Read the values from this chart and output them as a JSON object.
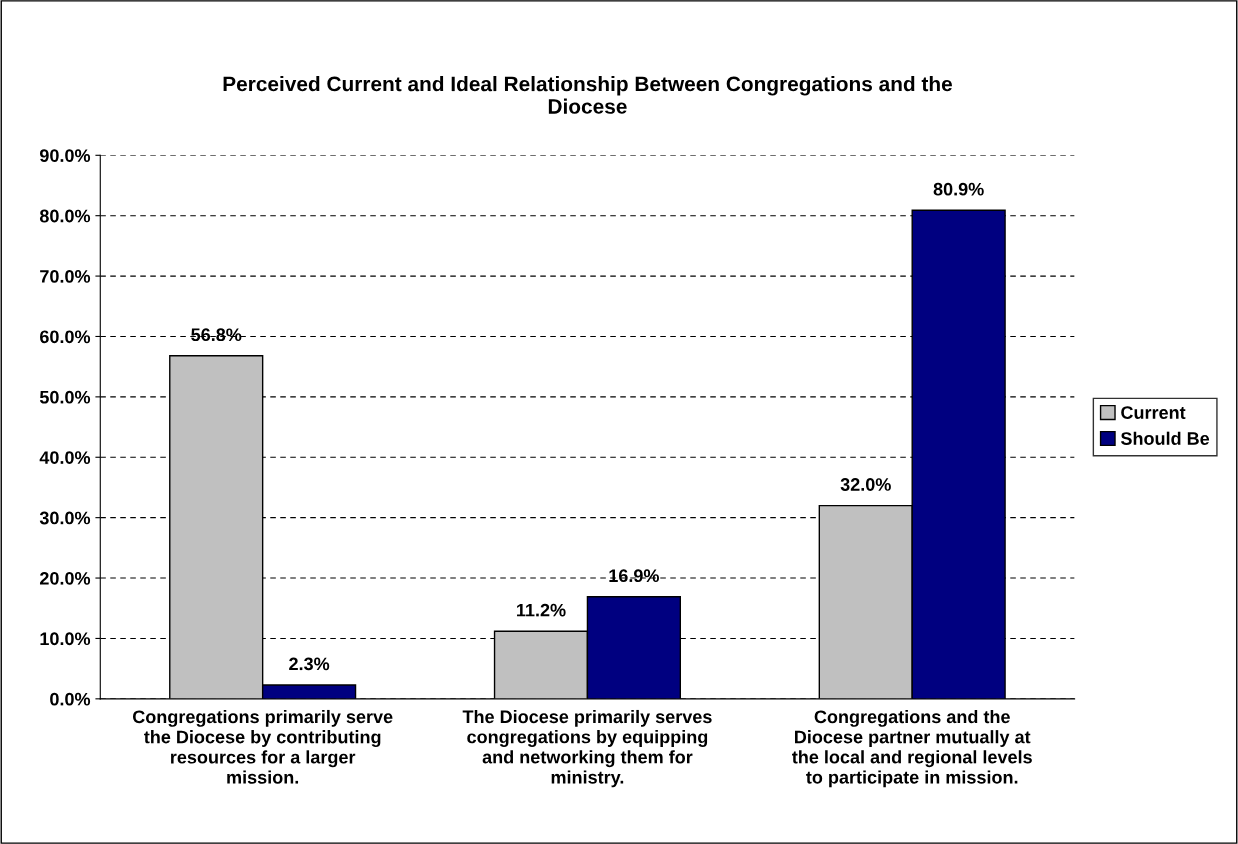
{
  "chart_data": {
    "type": "bar",
    "title": "Perceived Current and Ideal Relationship Between Congregations and the\nDiocese",
    "categories": [
      "Congregations primarily serve\nthe Diocese by contributing\nresources for a larger\nmission.",
      "The Diocese primarily serves\ncongregations by equipping\nand networking them for\nministry.",
      "Congregations and the\nDiocese partner mutually at\nthe local and regional levels\nto participate in mission."
    ],
    "series": [
      {
        "name": "Current",
        "color": "#c0c0c0",
        "values": [
          56.8,
          11.2,
          32.0
        ],
        "value_labels": [
          "56.8%",
          "11.2%",
          "32.0%"
        ]
      },
      {
        "name": "Should Be",
        "color": "#000080",
        "values": [
          2.3,
          16.9,
          80.9
        ],
        "value_labels": [
          "2.3%",
          "16.9%",
          "80.9%"
        ]
      }
    ],
    "ylim": [
      0,
      90
    ],
    "yticks": [
      {
        "value": 0,
        "label": "0.0%"
      },
      {
        "value": 10,
        "label": "10.0%"
      },
      {
        "value": 20,
        "label": "20.0%"
      },
      {
        "value": 30,
        "label": "30.0%"
      },
      {
        "value": 40,
        "label": "40.0%"
      },
      {
        "value": 50,
        "label": "50.0%"
      },
      {
        "value": 60,
        "label": "60.0%"
      },
      {
        "value": 70,
        "label": "70.0%"
      },
      {
        "value": 80,
        "label": "80.0%"
      },
      {
        "value": 90,
        "label": "90.0%"
      }
    ],
    "grid": "y",
    "legend": "right"
  }
}
